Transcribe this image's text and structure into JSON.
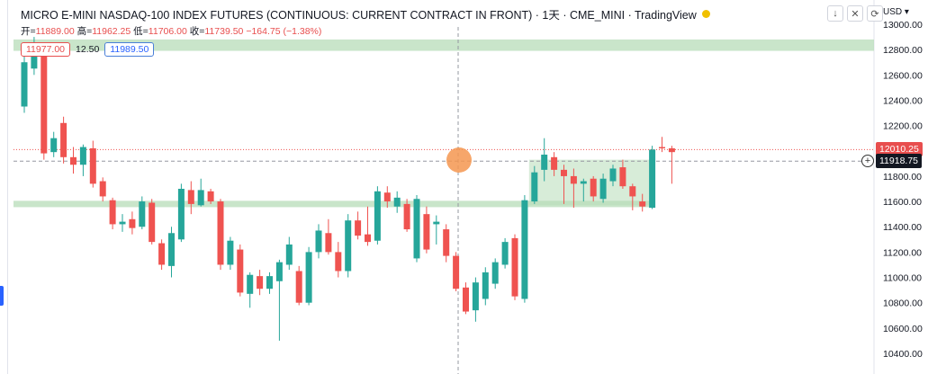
{
  "header": {
    "title": "MICRO E-MINI NASDAQ-100 INDEX FUTURES (CONTINUOUS: CURRENT CONTRACT IN FRONT) · 1天 · CME_MINI · TradingView",
    "ohlc": {
      "open_label": "开=",
      "open": "11889.00",
      "high_label": "高=",
      "high": "11962.25",
      "low_label": "低=",
      "low": "11706.00",
      "close_label": "收=",
      "close": "11739.50",
      "change": "−164.75 (−1.38%)"
    },
    "bid": "11977.00",
    "spread": "12.50",
    "ask": "11989.50",
    "currency": "USD",
    "tool_icons": [
      "arrow-down-icon",
      "close-icon",
      "refresh-icon"
    ]
  },
  "colors": {
    "up": "#26a69a",
    "down": "#ef5350",
    "zone": "#b7dcb8",
    "last_price_tag": "#e84e4e",
    "cursor_price_tag": "#131722"
  },
  "price_axis": {
    "labels": [
      "13000.00",
      "12800.00",
      "12600.00",
      "12400.00",
      "12200.00",
      "12000.00",
      "11800.00",
      "11600.00",
      "11400.00",
      "11200.00",
      "11000.00",
      "10800.00",
      "10600.00",
      "10400.00"
    ],
    "last_price": "12010.25",
    "cursor_price": "11918.75"
  },
  "chart_data": {
    "type": "candlestick",
    "y_range": [
      10300,
      13050
    ],
    "zones": [
      {
        "from": 12790,
        "to": 12880,
        "span": "full"
      },
      {
        "from": 11555,
        "to": 11605,
        "span": "left-to-mid"
      },
      {
        "from": 11570,
        "to": 11930,
        "span": "box"
      }
    ],
    "candles": [
      {
        "o": 12350,
        "h": 12760,
        "l": 12300,
        "c": 12700
      },
      {
        "o": 12650,
        "h": 12900,
        "l": 12600,
        "c": 12840
      },
      {
        "o": 12800,
        "h": 12850,
        "l": 11930,
        "c": 11980
      },
      {
        "o": 11990,
        "h": 12150,
        "l": 11950,
        "c": 12100
      },
      {
        "o": 12220,
        "h": 12270,
        "l": 11900,
        "c": 11950
      },
      {
        "o": 11950,
        "h": 12030,
        "l": 11820,
        "c": 11890
      },
      {
        "o": 11890,
        "h": 12050,
        "l": 11800,
        "c": 12030
      },
      {
        "o": 12020,
        "h": 12080,
        "l": 11710,
        "c": 11740
      },
      {
        "o": 11760,
        "h": 11790,
        "l": 11600,
        "c": 11640
      },
      {
        "o": 11610,
        "h": 11630,
        "l": 11380,
        "c": 11420
      },
      {
        "o": 11420,
        "h": 11500,
        "l": 11360,
        "c": 11440
      },
      {
        "o": 11460,
        "h": 11520,
        "l": 11340,
        "c": 11390
      },
      {
        "o": 11400,
        "h": 11640,
        "l": 11380,
        "c": 11600
      },
      {
        "o": 11590,
        "h": 11620,
        "l": 11260,
        "c": 11280
      },
      {
        "o": 11270,
        "h": 11300,
        "l": 11060,
        "c": 11100
      },
      {
        "o": 11090,
        "h": 11400,
        "l": 11000,
        "c": 11350
      },
      {
        "o": 11300,
        "h": 11740,
        "l": 11280,
        "c": 11700
      },
      {
        "o": 11690,
        "h": 11760,
        "l": 11500,
        "c": 11580
      },
      {
        "o": 11570,
        "h": 11780,
        "l": 11560,
        "c": 11690
      },
      {
        "o": 11680,
        "h": 11700,
        "l": 11580,
        "c": 11600
      },
      {
        "o": 11600,
        "h": 11620,
        "l": 11060,
        "c": 11100
      },
      {
        "o": 11100,
        "h": 11320,
        "l": 11060,
        "c": 11290
      },
      {
        "o": 11220,
        "h": 11260,
        "l": 10850,
        "c": 10880
      },
      {
        "o": 10870,
        "h": 11040,
        "l": 10760,
        "c": 11020
      },
      {
        "o": 11010,
        "h": 11060,
        "l": 10860,
        "c": 10910
      },
      {
        "o": 10910,
        "h": 11040,
        "l": 10870,
        "c": 11010
      },
      {
        "o": 10970,
        "h": 11140,
        "l": 10500,
        "c": 11120
      },
      {
        "o": 11100,
        "h": 11320,
        "l": 11060,
        "c": 11260
      },
      {
        "o": 11050,
        "h": 11090,
        "l": 10780,
        "c": 10800
      },
      {
        "o": 10800,
        "h": 11240,
        "l": 10780,
        "c": 11200
      },
      {
        "o": 11200,
        "h": 11420,
        "l": 11150,
        "c": 11370
      },
      {
        "o": 11350,
        "h": 11460,
        "l": 11180,
        "c": 11200
      },
      {
        "o": 11200,
        "h": 11280,
        "l": 11000,
        "c": 11050
      },
      {
        "o": 11050,
        "h": 11500,
        "l": 11000,
        "c": 11450
      },
      {
        "o": 11450,
        "h": 11520,
        "l": 11300,
        "c": 11330
      },
      {
        "o": 11340,
        "h": 11560,
        "l": 11250,
        "c": 11280
      },
      {
        "o": 11290,
        "h": 11720,
        "l": 11260,
        "c": 11680
      },
      {
        "o": 11670,
        "h": 11720,
        "l": 11550,
        "c": 11600
      },
      {
        "o": 11560,
        "h": 11680,
        "l": 11510,
        "c": 11630
      },
      {
        "o": 11580,
        "h": 11620,
        "l": 11360,
        "c": 11380
      },
      {
        "o": 11150,
        "h": 11650,
        "l": 11120,
        "c": 11620
      },
      {
        "o": 11500,
        "h": 11560,
        "l": 11190,
        "c": 11220
      },
      {
        "o": 11420,
        "h": 11490,
        "l": 11260,
        "c": 11440
      },
      {
        "o": 11380,
        "h": 11420,
        "l": 11120,
        "c": 11170
      },
      {
        "o": 11170,
        "h": 11200,
        "l": 10890,
        "c": 10910
      },
      {
        "o": 10920,
        "h": 10960,
        "l": 10710,
        "c": 10730
      },
      {
        "o": 10740,
        "h": 11000,
        "l": 10650,
        "c": 10960
      },
      {
        "o": 10830,
        "h": 11080,
        "l": 10780,
        "c": 11040
      },
      {
        "o": 10950,
        "h": 11150,
        "l": 10910,
        "c": 11120
      },
      {
        "o": 11100,
        "h": 11310,
        "l": 11070,
        "c": 11280
      },
      {
        "o": 11310,
        "h": 11340,
        "l": 10820,
        "c": 10850
      },
      {
        "o": 10830,
        "h": 11650,
        "l": 10800,
        "c": 11610
      },
      {
        "o": 11600,
        "h": 11880,
        "l": 11580,
        "c": 11830
      },
      {
        "o": 11850,
        "h": 12100,
        "l": 11760,
        "c": 11970
      },
      {
        "o": 11950,
        "h": 11990,
        "l": 11800,
        "c": 11850
      },
      {
        "o": 11850,
        "h": 11890,
        "l": 11580,
        "c": 11800
      },
      {
        "o": 11800,
        "h": 11860,
        "l": 11550,
        "c": 11740
      },
      {
        "o": 11740,
        "h": 11780,
        "l": 11600,
        "c": 11760
      },
      {
        "o": 11780,
        "h": 11800,
        "l": 11600,
        "c": 11640
      },
      {
        "o": 11620,
        "h": 11820,
        "l": 11590,
        "c": 11780
      },
      {
        "o": 11760,
        "h": 11890,
        "l": 11720,
        "c": 11860
      },
      {
        "o": 11870,
        "h": 11930,
        "l": 11700,
        "c": 11720
      },
      {
        "o": 11720,
        "h": 11740,
        "l": 11530,
        "c": 11640
      },
      {
        "o": 11600,
        "h": 11660,
        "l": 11520,
        "c": 11560
      },
      {
        "o": 11550,
        "h": 12040,
        "l": 11540,
        "c": 12010
      },
      {
        "o": 12030,
        "h": 12110,
        "l": 11990,
        "c": 12020
      },
      {
        "o": 12020,
        "h": 12040,
        "l": 11740,
        "c": 11990
      }
    ]
  }
}
